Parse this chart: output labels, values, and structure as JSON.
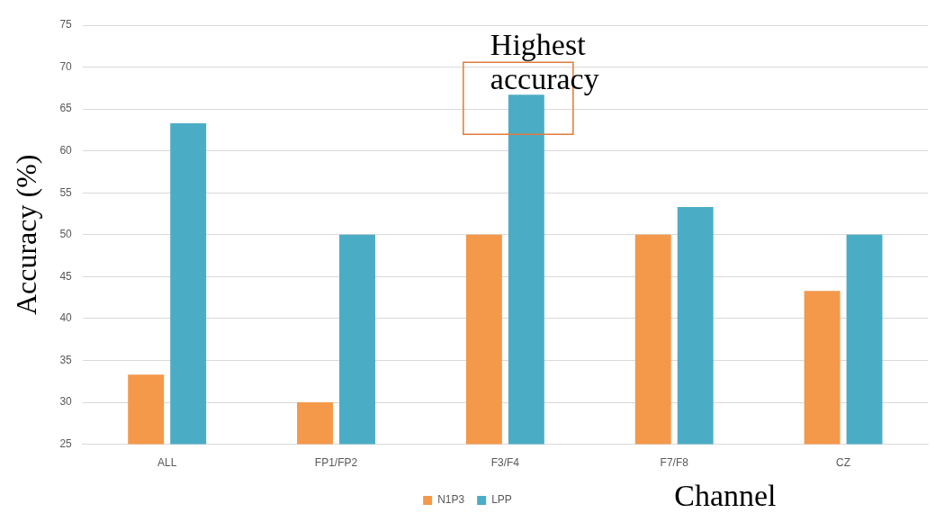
{
  "chart_data": {
    "type": "bar",
    "categories": [
      "ALL",
      "FP1/FP2",
      "F3/F4",
      "F7/F8",
      "CZ"
    ],
    "series": [
      {
        "name": "N1P3",
        "color": "#f4984a",
        "values": [
          33.3,
          30,
          50,
          50,
          43.3
        ]
      },
      {
        "name": "LPP",
        "color": "#4bacc6",
        "values": [
          63.3,
          50,
          66.7,
          53.3,
          50
        ]
      }
    ],
    "ylabel": "Accuracy (%)",
    "xlabel": "Channel",
    "ylim": [
      25,
      75
    ],
    "yticks": [
      25,
      30,
      35,
      40,
      45,
      50,
      55,
      60,
      65,
      70,
      75
    ],
    "grid": "y",
    "legend": "bottom",
    "annotations": [
      {
        "text": "Highest accuracy",
        "x": "F3/F4",
        "y": 66.7
      }
    ]
  }
}
